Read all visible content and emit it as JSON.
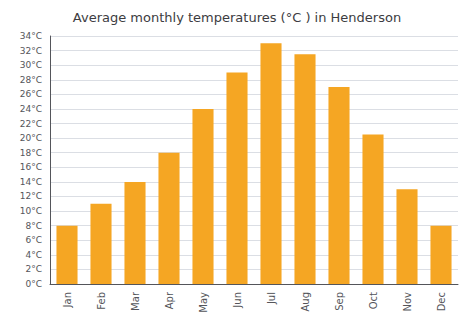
{
  "chart_data": {
    "type": "bar",
    "title": "Average monthly temperatures (°C ) in Henderson",
    "categories": [
      "Jan",
      "Feb",
      "Mar",
      "Apr",
      "May",
      "Jun",
      "Jul",
      "Aug",
      "Sep",
      "Oct",
      "Nov",
      "Dec"
    ],
    "values": [
      8,
      11,
      14,
      18,
      24,
      29,
      33,
      31.5,
      27,
      20.5,
      13,
      8
    ],
    "color": "#F5A623",
    "ylim": [
      0,
      34
    ],
    "yticks": [
      {
        "value": 0,
        "label": "0°C"
      },
      {
        "value": 2,
        "label": "2°C"
      },
      {
        "value": 4,
        "label": "4°C"
      },
      {
        "value": 6,
        "label": "6°C"
      },
      {
        "value": 8,
        "label": "8°C"
      },
      {
        "value": 10,
        "label": "10°C"
      },
      {
        "value": 12,
        "label": "12°C"
      },
      {
        "value": 14,
        "label": "14°C"
      },
      {
        "value": 16,
        "label": "16°C"
      },
      {
        "value": 18,
        "label": "18°C"
      },
      {
        "value": 20,
        "label": "20°C"
      },
      {
        "value": 22,
        "label": "22°C"
      },
      {
        "value": 24,
        "label": "24°C"
      },
      {
        "value": 26,
        "label": "26°C"
      },
      {
        "value": 28,
        "label": "28°C"
      },
      {
        "value": 30,
        "label": "30°C"
      },
      {
        "value": 32,
        "label": "32°C"
      },
      {
        "value": 34,
        "label": "34°C"
      }
    ],
    "grid": true
  }
}
